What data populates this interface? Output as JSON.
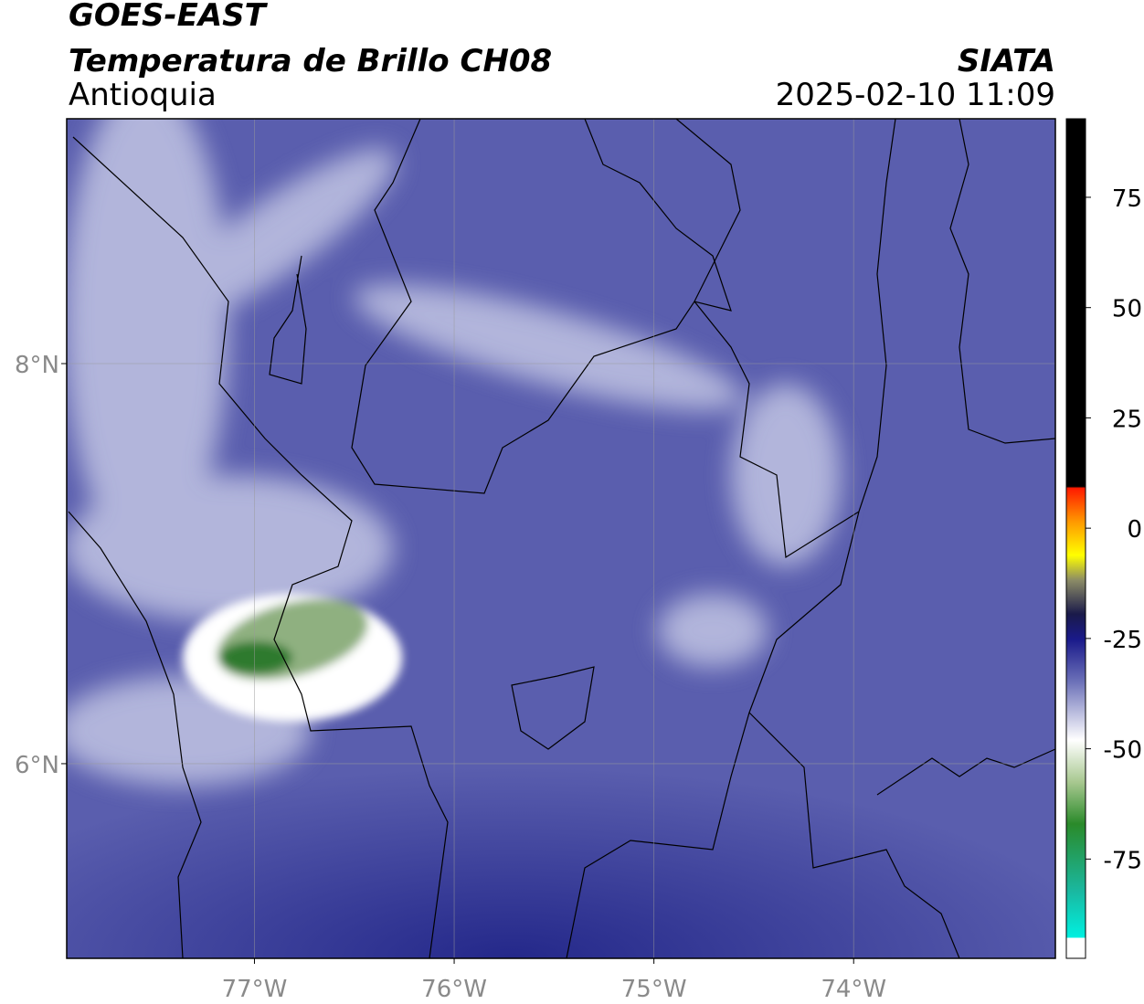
{
  "header": {
    "title": "GOES-EAST",
    "subtitle": "Temperatura de Brillo CH08",
    "region": "Antioquia",
    "source": "SIATA",
    "datetime": "2025-02-10 11:09"
  },
  "map": {
    "xlim": [
      -77.94,
      -72.99
    ],
    "ylim": [
      5.027,
      9.224
    ],
    "xticks": [
      {
        "value": -77,
        "label": "77°W"
      },
      {
        "value": -76,
        "label": "76°W"
      },
      {
        "value": -75,
        "label": "75°W"
      },
      {
        "value": -74,
        "label": "74°W"
      }
    ],
    "yticks": [
      {
        "value": 8,
        "label": "8°N"
      },
      {
        "value": 6,
        "label": "6°N"
      }
    ]
  },
  "colorbar": {
    "lim": [
      -97.5,
      92.8
    ],
    "ticks": [
      75,
      50,
      25,
      0,
      -25,
      -50,
      -75
    ]
  }
}
